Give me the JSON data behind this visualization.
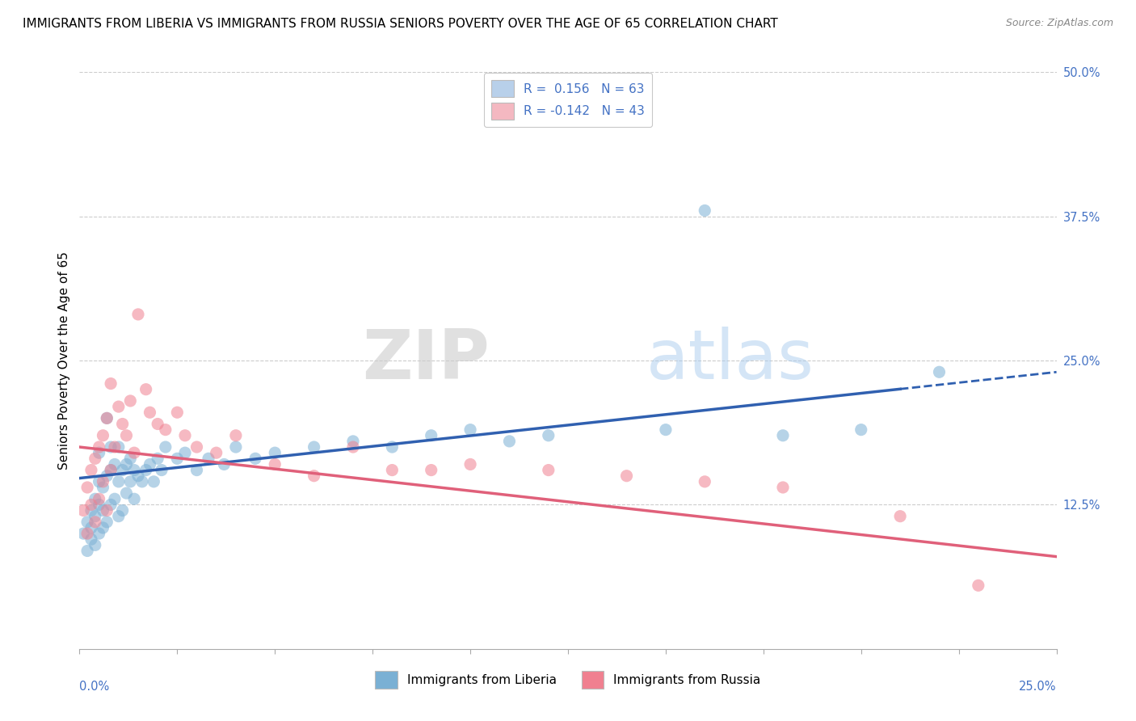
{
  "title": "IMMIGRANTS FROM LIBERIA VS IMMIGRANTS FROM RUSSIA SENIORS POVERTY OVER THE AGE OF 65 CORRELATION CHART",
  "source": "Source: ZipAtlas.com",
  "ylabel": "Seniors Poverty Over the Age of 65",
  "yaxis_labels": [
    "50.0%",
    "37.5%",
    "25.0%",
    "12.5%"
  ],
  "yaxis_values": [
    0.5,
    0.375,
    0.25,
    0.125
  ],
  "xlim": [
    0.0,
    0.25
  ],
  "ylim": [
    0.0,
    0.5
  ],
  "watermark_zip": "ZIP",
  "watermark_atlas": "atlas",
  "legend_entries": [
    {
      "label": "R =  0.156   N = 63",
      "color": "#b8d0ea"
    },
    {
      "label": "R = -0.142   N = 43",
      "color": "#f4b8c1"
    }
  ],
  "liberia_color": "#7ab0d4",
  "russia_color": "#f08090",
  "liberia_line_color": "#3060b0",
  "russia_line_color": "#e0607a",
  "liberia_scatter": {
    "x": [
      0.001,
      0.002,
      0.002,
      0.003,
      0.003,
      0.003,
      0.004,
      0.004,
      0.004,
      0.005,
      0.005,
      0.005,
      0.005,
      0.006,
      0.006,
      0.006,
      0.007,
      0.007,
      0.007,
      0.008,
      0.008,
      0.008,
      0.009,
      0.009,
      0.01,
      0.01,
      0.01,
      0.011,
      0.011,
      0.012,
      0.012,
      0.013,
      0.013,
      0.014,
      0.014,
      0.015,
      0.016,
      0.017,
      0.018,
      0.019,
      0.02,
      0.021,
      0.022,
      0.025,
      0.027,
      0.03,
      0.033,
      0.037,
      0.04,
      0.045,
      0.05,
      0.06,
      0.07,
      0.08,
      0.09,
      0.1,
      0.11,
      0.12,
      0.15,
      0.16,
      0.18,
      0.2,
      0.22
    ],
    "y": [
      0.1,
      0.085,
      0.11,
      0.095,
      0.12,
      0.105,
      0.09,
      0.115,
      0.13,
      0.1,
      0.125,
      0.145,
      0.17,
      0.105,
      0.12,
      0.14,
      0.11,
      0.15,
      0.2,
      0.125,
      0.155,
      0.175,
      0.13,
      0.16,
      0.115,
      0.145,
      0.175,
      0.12,
      0.155,
      0.135,
      0.16,
      0.145,
      0.165,
      0.13,
      0.155,
      0.15,
      0.145,
      0.155,
      0.16,
      0.145,
      0.165,
      0.155,
      0.175,
      0.165,
      0.17,
      0.155,
      0.165,
      0.16,
      0.175,
      0.165,
      0.17,
      0.175,
      0.18,
      0.175,
      0.185,
      0.19,
      0.18,
      0.185,
      0.19,
      0.38,
      0.185,
      0.19,
      0.24
    ]
  },
  "russia_scatter": {
    "x": [
      0.001,
      0.002,
      0.002,
      0.003,
      0.003,
      0.004,
      0.004,
      0.005,
      0.005,
      0.006,
      0.006,
      0.007,
      0.007,
      0.008,
      0.008,
      0.009,
      0.01,
      0.011,
      0.012,
      0.013,
      0.014,
      0.015,
      0.017,
      0.018,
      0.02,
      0.022,
      0.025,
      0.027,
      0.03,
      0.035,
      0.04,
      0.05,
      0.06,
      0.07,
      0.08,
      0.09,
      0.1,
      0.12,
      0.14,
      0.16,
      0.18,
      0.21,
      0.23
    ],
    "y": [
      0.12,
      0.1,
      0.14,
      0.125,
      0.155,
      0.11,
      0.165,
      0.13,
      0.175,
      0.145,
      0.185,
      0.12,
      0.2,
      0.155,
      0.23,
      0.175,
      0.21,
      0.195,
      0.185,
      0.215,
      0.17,
      0.29,
      0.225,
      0.205,
      0.195,
      0.19,
      0.205,
      0.185,
      0.175,
      0.17,
      0.185,
      0.16,
      0.15,
      0.175,
      0.155,
      0.155,
      0.16,
      0.155,
      0.15,
      0.145,
      0.14,
      0.115,
      0.055
    ]
  },
  "background_color": "#ffffff",
  "grid_color": "#cccccc",
  "title_fontsize": 11,
  "axis_label_fontsize": 11,
  "tick_fontsize": 10.5,
  "legend_fontsize": 11
}
